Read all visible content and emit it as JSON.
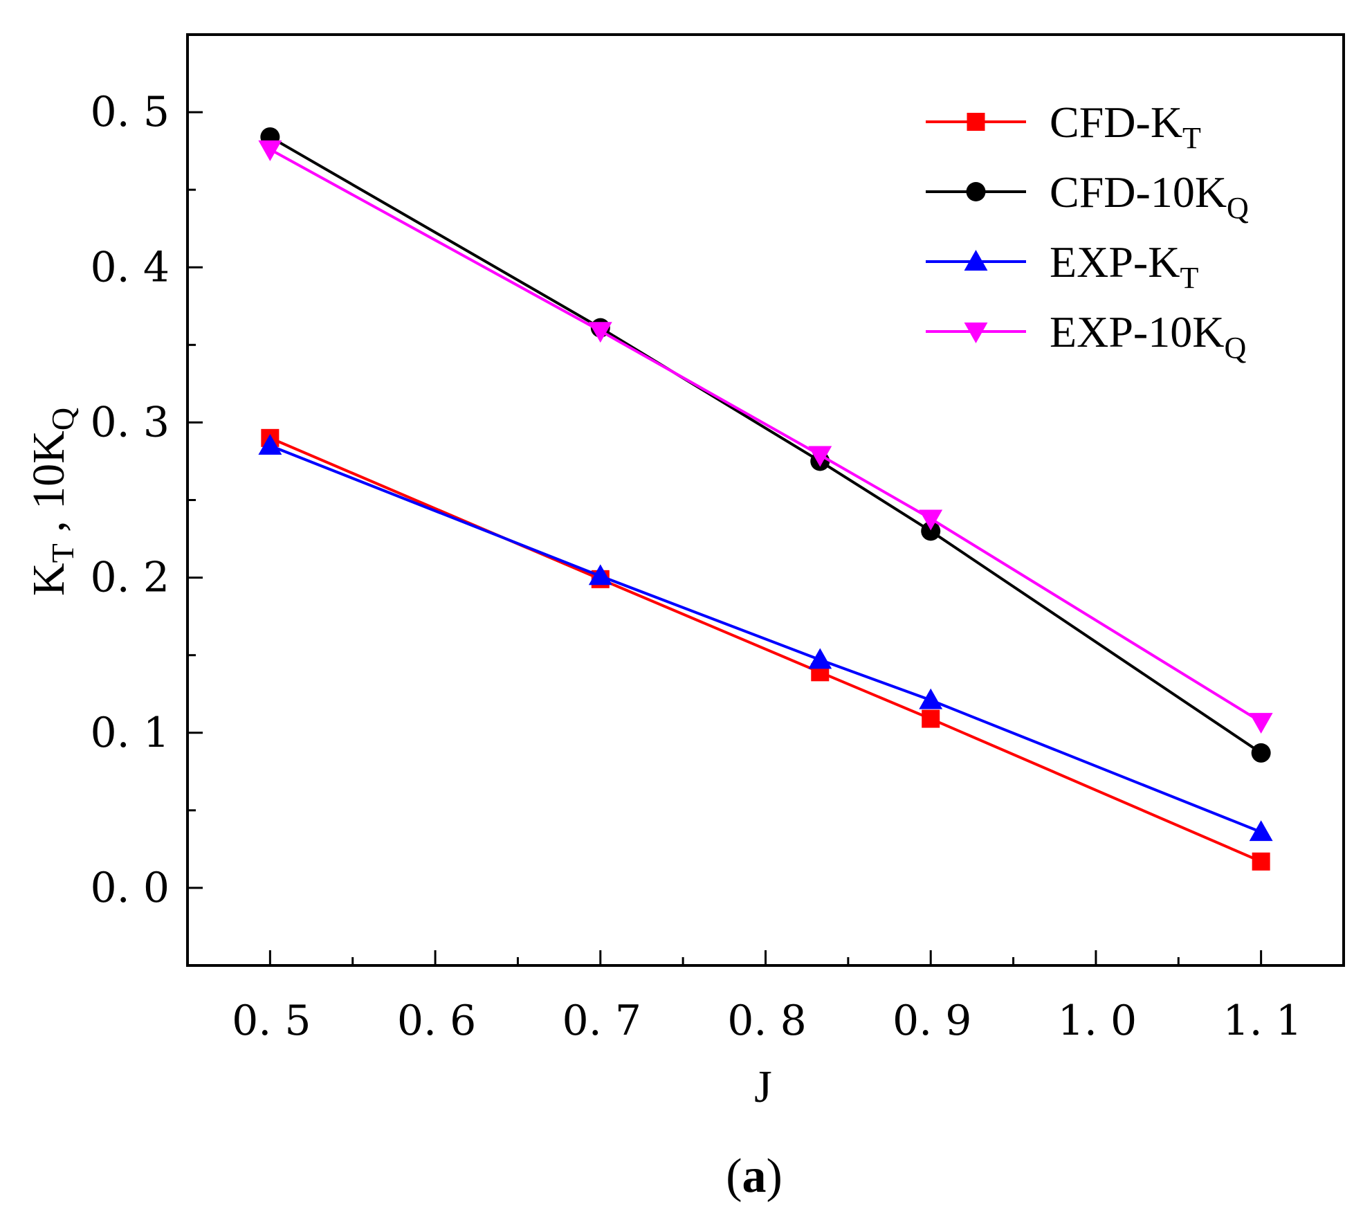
{
  "chart_data": {
    "type": "line",
    "title": "",
    "xlabel": "J",
    "ylabel": {
      "main": "K",
      "sub1": "T",
      "mid": " , 10K",
      "sub2": "Q"
    },
    "xlim": [
      0.45,
      1.15
    ],
    "ylim": [
      -0.05,
      0.55
    ],
    "x_ticks": [
      0.5,
      0.6,
      0.7,
      0.8,
      0.9,
      1.0,
      1.1
    ],
    "x_tick_labels": [
      "0. 5",
      "0. 6",
      "0. 7",
      "0. 8",
      "0. 9",
      "1. 0",
      "1. 1"
    ],
    "y_ticks": [
      0.0,
      0.1,
      0.2,
      0.3,
      0.4,
      0.5
    ],
    "y_tick_labels": [
      "0. 0",
      "0. 1",
      "0. 2",
      "0. 3",
      "0. 4",
      "0. 5"
    ],
    "grid": false,
    "legend_position": "top-right",
    "series": [
      {
        "name": "CFD-K",
        "sub": "T",
        "color": "#ff0000",
        "marker": "square",
        "x": [
          0.5,
          0.7,
          0.833,
          0.9,
          1.1
        ],
        "y": [
          0.29,
          0.199,
          0.139,
          0.109,
          0.017
        ]
      },
      {
        "name": "CFD-10K",
        "sub": "Q",
        "color": "#000000",
        "marker": "circle",
        "x": [
          0.5,
          0.7,
          0.833,
          0.9,
          1.1
        ],
        "y": [
          0.484,
          0.361,
          0.275,
          0.23,
          0.087
        ]
      },
      {
        "name": "EXP-K",
        "sub": "T",
        "color": "#0000ff",
        "marker": "triangle-up",
        "x": [
          0.5,
          0.7,
          0.833,
          0.9,
          1.1
        ],
        "y": [
          0.285,
          0.201,
          0.147,
          0.121,
          0.036
        ]
      },
      {
        "name": "EXP-10K",
        "sub": "Q",
        "color": "#ff00ff",
        "marker": "triangle-down",
        "x": [
          0.5,
          0.7,
          0.833,
          0.9,
          1.1
        ],
        "y": [
          0.476,
          0.359,
          0.279,
          0.238,
          0.107
        ]
      }
    ]
  },
  "caption": {
    "open": "(",
    "letter": "a",
    "close": ")"
  }
}
